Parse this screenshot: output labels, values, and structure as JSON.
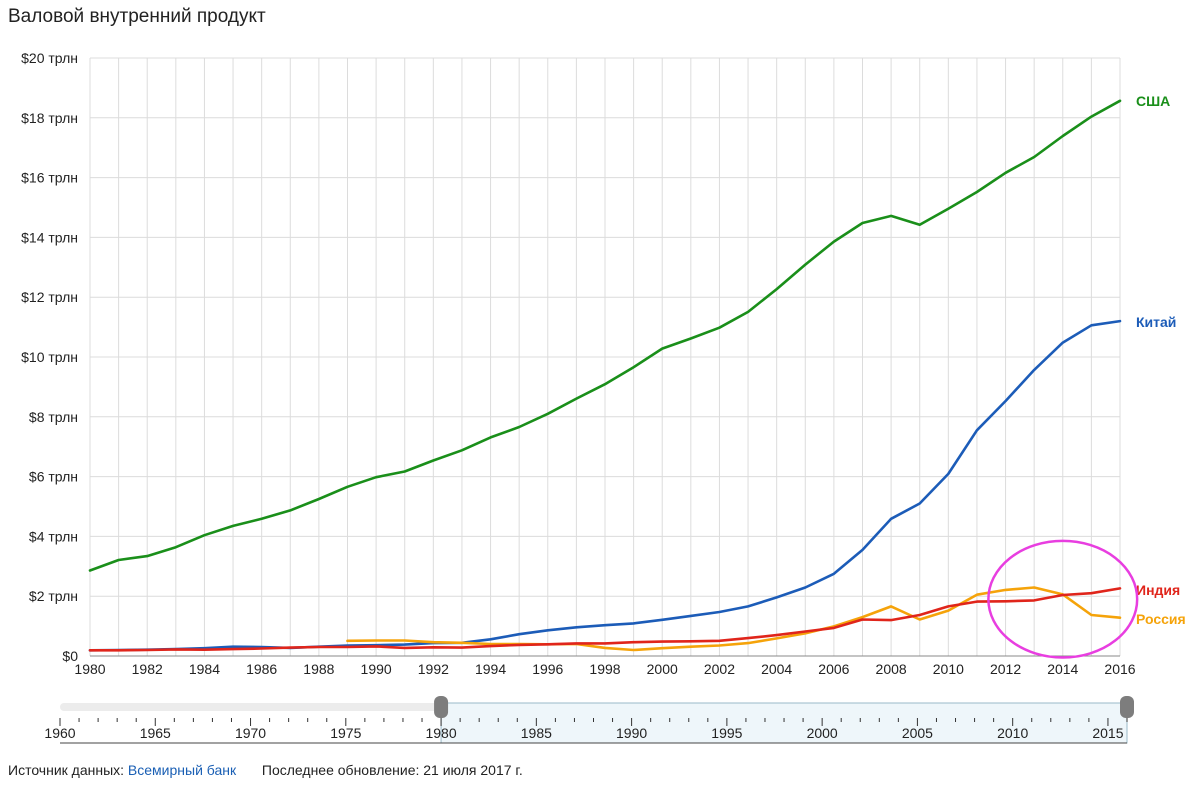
{
  "chart_data": {
    "type": "line",
    "title": "Валовой внутренний продукт",
    "y_tick_labels": [
      "$0",
      "$2 трлн",
      "$4 трлн",
      "$6 трлн",
      "$8 трлн",
      "$10 трлн",
      "$12 трлн",
      "$14 трлн",
      "$16 трлн",
      "$18 трлн",
      "$20 трлн"
    ],
    "ylim": [
      0,
      20
    ],
    "y_unit": "трлн $",
    "xlim": [
      1980,
      2016
    ],
    "x_ticks": [
      1980,
      1982,
      1984,
      1986,
      1988,
      1990,
      1992,
      1994,
      1996,
      1998,
      2000,
      2002,
      2004,
      2006,
      2008,
      2010,
      2012,
      2014,
      2016
    ],
    "grid": true,
    "legend": "labels at line ends",
    "series": [
      {
        "name": "США",
        "color": "#1a8f1a",
        "x": [
          1980,
          1981,
          1982,
          1983,
          1984,
          1985,
          1986,
          1987,
          1988,
          1989,
          1990,
          1991,
          1992,
          1993,
          1994,
          1995,
          1996,
          1997,
          1998,
          1999,
          2000,
          2001,
          2002,
          2003,
          2004,
          2005,
          2006,
          2007,
          2008,
          2009,
          2010,
          2011,
          2012,
          2013,
          2014,
          2015,
          2016
        ],
        "values": [
          2.86,
          3.21,
          3.34,
          3.64,
          4.04,
          4.35,
          4.59,
          4.87,
          5.25,
          5.66,
          5.98,
          6.17,
          6.54,
          6.88,
          7.31,
          7.66,
          8.1,
          8.61,
          9.09,
          9.66,
          10.28,
          10.62,
          10.98,
          11.51,
          12.27,
          13.09,
          13.86,
          14.48,
          14.72,
          14.42,
          14.96,
          15.52,
          16.16,
          16.69,
          17.39,
          18.04,
          18.57
        ]
      },
      {
        "name": "Китай",
        "color": "#1c5cb8",
        "x": [
          1980,
          1981,
          1982,
          1983,
          1984,
          1985,
          1986,
          1987,
          1988,
          1989,
          1990,
          1991,
          1992,
          1993,
          1994,
          1995,
          1996,
          1997,
          1998,
          1999,
          2000,
          2001,
          2002,
          2003,
          2004,
          2005,
          2006,
          2007,
          2008,
          2009,
          2010,
          2011,
          2012,
          2013,
          2014,
          2015,
          2016
        ],
        "values": [
          0.19,
          0.2,
          0.21,
          0.23,
          0.26,
          0.31,
          0.3,
          0.27,
          0.31,
          0.35,
          0.36,
          0.38,
          0.43,
          0.44,
          0.56,
          0.73,
          0.86,
          0.96,
          1.03,
          1.09,
          1.21,
          1.34,
          1.47,
          1.66,
          1.96,
          2.29,
          2.75,
          3.55,
          4.59,
          5.1,
          6.09,
          7.55,
          8.53,
          9.57,
          10.48,
          11.06,
          11.2
        ]
      },
      {
        "name": "Индия",
        "color": "#e0251b",
        "x": [
          1980,
          1981,
          1982,
          1983,
          1984,
          1985,
          1986,
          1987,
          1988,
          1989,
          1990,
          1991,
          1992,
          1993,
          1994,
          1995,
          1996,
          1997,
          1998,
          1999,
          2000,
          2001,
          2002,
          2003,
          2004,
          2005,
          2006,
          2007,
          2008,
          2009,
          2010,
          2011,
          2012,
          2013,
          2014,
          2015,
          2016
        ],
        "values": [
          0.19,
          0.19,
          0.2,
          0.22,
          0.21,
          0.23,
          0.25,
          0.28,
          0.3,
          0.3,
          0.32,
          0.27,
          0.29,
          0.28,
          0.33,
          0.37,
          0.39,
          0.42,
          0.42,
          0.46,
          0.48,
          0.49,
          0.51,
          0.6,
          0.7,
          0.82,
          0.94,
          1.22,
          1.2,
          1.37,
          1.66,
          1.82,
          1.83,
          1.86,
          2.04,
          2.1,
          2.26
        ]
      },
      {
        "name": "Россия",
        "color": "#f5a30a",
        "x": [
          1989,
          1990,
          1991,
          1992,
          1993,
          1994,
          1995,
          1996,
          1997,
          1998,
          1999,
          2000,
          2001,
          2002,
          2003,
          2004,
          2005,
          2006,
          2007,
          2008,
          2009,
          2010,
          2011,
          2012,
          2013,
          2014,
          2015,
          2016
        ],
        "values": [
          0.51,
          0.52,
          0.52,
          0.46,
          0.44,
          0.4,
          0.4,
          0.39,
          0.4,
          0.27,
          0.2,
          0.26,
          0.31,
          0.35,
          0.43,
          0.59,
          0.76,
          0.99,
          1.3,
          1.66,
          1.22,
          1.52,
          2.05,
          2.21,
          2.29,
          2.06,
          1.37,
          1.28
        ]
      }
    ],
    "annotation": {
      "type": "ellipse",
      "color": "#e83ee0",
      "center_x": 2014,
      "center_y": 1.9,
      "rx_years": 2.6,
      "ry_trln": 1.95
    },
    "range_selector": {
      "ticks": [
        "1960",
        "1965",
        "1970",
        "1975",
        "1980",
        "1985",
        "1990",
        "1995",
        "2000",
        "2005",
        "2010",
        "2015"
      ],
      "full_range": [
        1960,
        2016
      ],
      "selected_range": [
        1980,
        2016
      ]
    }
  },
  "footer": {
    "source_label": "Источник данных:",
    "source_link": "Всемирный банк",
    "updated": "Последнее обновление: 21 июля 2017 г."
  }
}
